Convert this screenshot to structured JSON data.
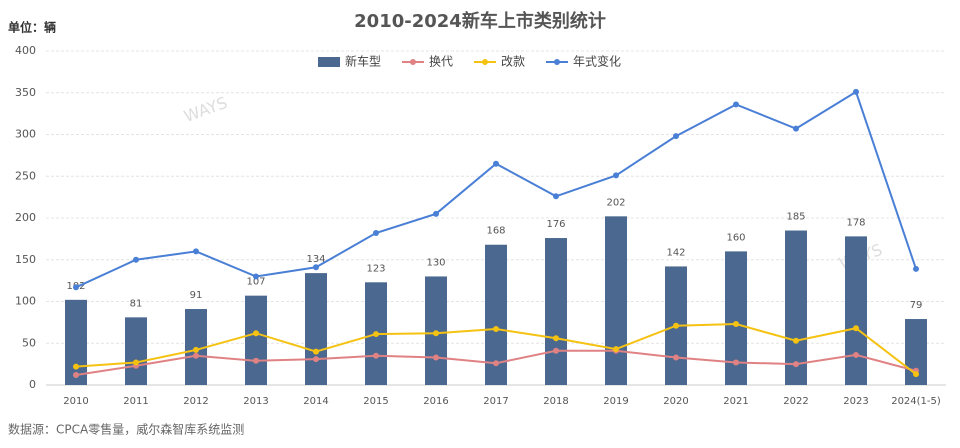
{
  "chart_data": {
    "type": "combo",
    "title": "2010-2024新车上市类别统计",
    "unit_label": "单位：辆",
    "source": "数据源：CPCA零售量，威尔森智库系统监测",
    "watermarks": [
      "WAYS",
      "WAYS"
    ],
    "categories": [
      "2010",
      "2011",
      "2012",
      "2013",
      "2014",
      "2015",
      "2016",
      "2017",
      "2018",
      "2019",
      "2020",
      "2021",
      "2022",
      "2023",
      "2024(1-5)"
    ],
    "series": [
      {
        "name": "新车型",
        "type": "bar",
        "color": "#4a6890",
        "values": [
          102,
          81,
          91,
          107,
          134,
          123,
          130,
          168,
          176,
          202,
          142,
          160,
          185,
          178,
          79
        ]
      },
      {
        "name": "换代",
        "type": "line",
        "color": "#e08283",
        "values": [
          12,
          23,
          35,
          29,
          31,
          35,
          33,
          26,
          41,
          41,
          33,
          27,
          25,
          36,
          17
        ]
      },
      {
        "name": "改款",
        "type": "line",
        "color": "#f5c211",
        "values": [
          22,
          27,
          42,
          62,
          40,
          61,
          62,
          67,
          56,
          43,
          71,
          73,
          53,
          68,
          13
        ]
      },
      {
        "name": "年式变化",
        "type": "line",
        "color": "#4a7fd6",
        "values": [
          117,
          150,
          160,
          130,
          141,
          182,
          205,
          265,
          226,
          251,
          298,
          336,
          307,
          351,
          139
        ]
      }
    ],
    "ylim": [
      0,
      400
    ],
    "yticks": [
      0,
      50,
      100,
      150,
      200,
      250,
      300,
      350,
      400
    ],
    "grid": true,
    "legend": "top"
  }
}
